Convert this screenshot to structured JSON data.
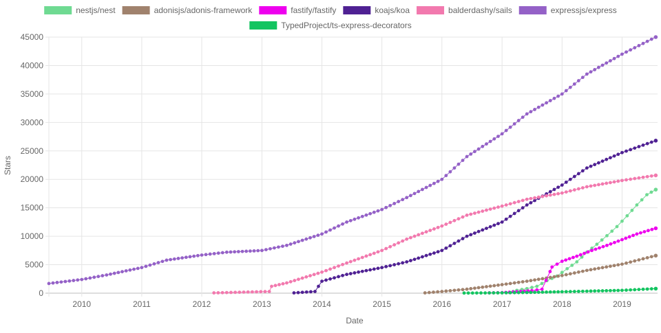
{
  "chart_data": {
    "type": "line",
    "xlabel": "Date",
    "ylabel": "Stars",
    "ylim": [
      0,
      45000
    ],
    "y_ticks": [
      "0",
      "5000",
      "10000",
      "15000",
      "20000",
      "25000",
      "30000",
      "35000",
      "40000",
      "45000"
    ],
    "xlim": [
      "2009-06-15",
      "2019-08-05"
    ],
    "x_ticks": [
      "2010",
      "2011",
      "2012",
      "2013",
      "2014",
      "2015",
      "2016",
      "2017",
      "2018",
      "2019"
    ],
    "grid": true,
    "legend": "top",
    "series": [
      {
        "name": "nestjs/nest",
        "color": "#6fda92",
        "points": [
          [
            "2017-02-15",
            100
          ],
          [
            "2017-04-01",
            500
          ],
          [
            "2017-06-01",
            800
          ],
          [
            "2017-08-01",
            1200
          ],
          [
            "2017-10-01",
            2200
          ],
          [
            "2017-12-01",
            3000
          ],
          [
            "2018-02-01",
            4300
          ],
          [
            "2018-04-01",
            5500
          ],
          [
            "2018-06-01",
            7200
          ],
          [
            "2018-08-01",
            8600
          ],
          [
            "2018-10-01",
            10100
          ],
          [
            "2018-12-01",
            11700
          ],
          [
            "2019-02-01",
            13600
          ],
          [
            "2019-04-01",
            15500
          ],
          [
            "2019-06-01",
            17300
          ],
          [
            "2019-07-25",
            18200
          ]
        ]
      },
      {
        "name": "adonisjs/adonis-framework",
        "color": "#a0826d",
        "points": [
          [
            "2015-09-20",
            50
          ],
          [
            "2016-01-01",
            300
          ],
          [
            "2016-06-01",
            700
          ],
          [
            "2017-01-01",
            1500
          ],
          [
            "2017-06-01",
            2100
          ],
          [
            "2018-01-01",
            3100
          ],
          [
            "2018-06-01",
            4000
          ],
          [
            "2019-01-01",
            5100
          ],
          [
            "2019-07-25",
            6600
          ]
        ]
      },
      {
        "name": "fastify/fastify",
        "color": "#ee00ee",
        "points": [
          [
            "2016-10-15",
            50
          ],
          [
            "2017-01-01",
            100
          ],
          [
            "2017-04-01",
            250
          ],
          [
            "2017-07-01",
            450
          ],
          [
            "2017-09-01",
            700
          ],
          [
            "2017-10-20",
            3800
          ],
          [
            "2017-11-01",
            4600
          ],
          [
            "2018-01-01",
            5600
          ],
          [
            "2018-04-01",
            6500
          ],
          [
            "2018-07-01",
            7500
          ],
          [
            "2018-10-01",
            8400
          ],
          [
            "2019-01-01",
            9400
          ],
          [
            "2019-04-01",
            10400
          ],
          [
            "2019-07-25",
            11400
          ]
        ]
      },
      {
        "name": "koajs/koa",
        "color": "#4f2193",
        "points": [
          [
            "2013-07-15",
            50
          ],
          [
            "2013-11-20",
            300
          ],
          [
            "2014-01-01",
            2100
          ],
          [
            "2014-06-01",
            3300
          ],
          [
            "2015-01-01",
            4500
          ],
          [
            "2015-06-01",
            5500
          ],
          [
            "2016-01-01",
            7500
          ],
          [
            "2016-06-01",
            10000
          ],
          [
            "2017-01-01",
            12500
          ],
          [
            "2017-06-01",
            15500
          ],
          [
            "2018-01-01",
            19000
          ],
          [
            "2018-06-01",
            22000
          ],
          [
            "2019-01-01",
            24700
          ],
          [
            "2019-07-25",
            26800
          ]
        ]
      },
      {
        "name": "balderdashy/sails",
        "color": "#f279ae",
        "points": [
          [
            "2012-03-15",
            50
          ],
          [
            "2013-02-15",
            300
          ],
          [
            "2013-03-01",
            1200
          ],
          [
            "2013-06-01",
            1800
          ],
          [
            "2014-01-01",
            3700
          ],
          [
            "2014-06-01",
            5300
          ],
          [
            "2015-01-01",
            7500
          ],
          [
            "2015-06-01",
            9500
          ],
          [
            "2016-01-01",
            11800
          ],
          [
            "2016-06-01",
            13700
          ],
          [
            "2017-01-01",
            15300
          ],
          [
            "2017-06-01",
            16500
          ],
          [
            "2018-01-01",
            17600
          ],
          [
            "2018-06-01",
            18700
          ],
          [
            "2019-01-01",
            19800
          ],
          [
            "2019-07-25",
            20700
          ]
        ]
      },
      {
        "name": "expressjs/express",
        "color": "#9461c7",
        "points": [
          [
            "2009-06-15",
            1700
          ],
          [
            "2010-01-01",
            2400
          ],
          [
            "2010-06-01",
            3200
          ],
          [
            "2011-01-01",
            4500
          ],
          [
            "2011-06-01",
            5800
          ],
          [
            "2012-01-01",
            6700
          ],
          [
            "2012-06-01",
            7200
          ],
          [
            "2013-01-01",
            7500
          ],
          [
            "2013-06-01",
            8400
          ],
          [
            "2014-01-01",
            10400
          ],
          [
            "2014-06-01",
            12500
          ],
          [
            "2015-01-01",
            14700
          ],
          [
            "2015-06-01",
            16800
          ],
          [
            "2016-01-01",
            20000
          ],
          [
            "2016-06-01",
            24000
          ],
          [
            "2017-01-01",
            28000
          ],
          [
            "2017-06-01",
            31500
          ],
          [
            "2018-01-01",
            35000
          ],
          [
            "2018-06-01",
            38500
          ],
          [
            "2019-01-01",
            42000
          ],
          [
            "2019-07-25",
            45000
          ]
        ]
      },
      {
        "name": "TypedProject/ts-express-decorators",
        "color": "#13c460",
        "points": [
          [
            "2016-05-15",
            20
          ],
          [
            "2017-01-01",
            60
          ],
          [
            "2017-06-01",
            120
          ],
          [
            "2018-01-01",
            250
          ],
          [
            "2018-06-01",
            350
          ],
          [
            "2019-01-01",
            500
          ],
          [
            "2019-07-25",
            800
          ]
        ]
      }
    ]
  }
}
